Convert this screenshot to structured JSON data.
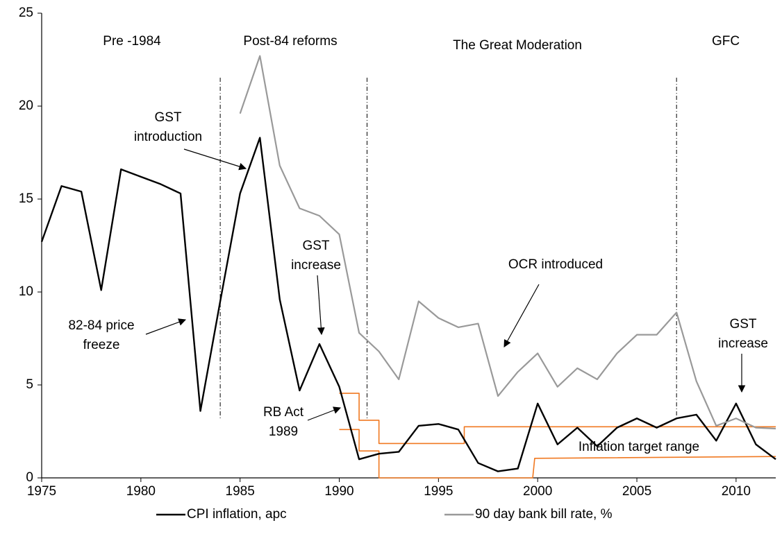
{
  "chart_data": {
    "type": "line",
    "x": [
      1975,
      1976,
      1977,
      1978,
      1979,
      1980,
      1981,
      1982,
      1983,
      1984,
      1985,
      1986,
      1987,
      1988,
      1989,
      1990,
      1991,
      1992,
      1993,
      1994,
      1995,
      1996,
      1997,
      1998,
      1999,
      2000,
      2001,
      2002,
      2003,
      2004,
      2005,
      2006,
      2007,
      2008,
      2009,
      2010,
      2011,
      2012
    ],
    "series": [
      {
        "name": "CPI inflation, apc",
        "color": "#000000",
        "values": [
          12.7,
          15.7,
          15.4,
          10.1,
          16.6,
          16.2,
          15.8,
          15.3,
          3.6,
          9.5,
          15.3,
          18.3,
          9.6,
          4.7,
          7.2,
          4.9,
          1.0,
          1.3,
          1.4,
          2.8,
          2.9,
          2.6,
          0.8,
          0.35,
          0.5,
          4.0,
          1.8,
          2.7,
          1.7,
          2.7,
          3.2,
          2.7,
          3.2,
          3.4,
          2.0,
          4.0,
          1.8,
          1.0
        ]
      },
      {
        "name": "90 day bank bill rate, %",
        "color": "#999999",
        "values": [
          null,
          null,
          null,
          null,
          null,
          null,
          null,
          null,
          null,
          null,
          19.6,
          22.7,
          16.8,
          14.5,
          14.1,
          13.1,
          7.8,
          6.8,
          5.3,
          9.5,
          8.6,
          8.1,
          8.3,
          4.4,
          5.7,
          6.7,
          4.9,
          5.9,
          5.3,
          6.7,
          7.7,
          7.7,
          8.9,
          5.2,
          2.8,
          3.2,
          2.7,
          2.65
        ]
      }
    ],
    "target_range_lines": [
      {
        "color": "#f07820",
        "x": [
          1990,
          1991,
          1991,
          1992,
          1992,
          1996.3,
          1996.3,
          2012
        ],
        "values": [
          4.55,
          4.55,
          3.1,
          3.1,
          1.85,
          1.85,
          2.75,
          2.75
        ]
      },
      {
        "color": "#f07820",
        "x": [
          1990,
          1991,
          1991,
          1992,
          1992,
          1999.75,
          1999.85,
          2012
        ],
        "values": [
          2.6,
          2.6,
          1.45,
          1.45,
          0,
          0,
          1.05,
          1.15
        ]
      }
    ],
    "period_dividers": [
      1984,
      1991.4,
      2007
    ],
    "xlim": [
      1975,
      2012
    ],
    "xticks": [
      1975,
      1980,
      1985,
      1990,
      1995,
      2000,
      2005,
      2010
    ],
    "ylim": [
      0,
      25
    ],
    "yticks": [
      0,
      5,
      10,
      15,
      20,
      25
    ],
    "annotations": [
      {
        "lines": [
          "Pre -1984"
        ]
      },
      {
        "lines": [
          "Post-84 reforms"
        ]
      },
      {
        "lines": [
          "The Great Moderation"
        ]
      },
      {
        "lines": [
          "GFC"
        ]
      },
      {
        "lines": [
          "GST",
          "introduction"
        ]
      },
      {
        "lines": [
          "82-84 price",
          "freeze"
        ]
      },
      {
        "lines": [
          "GST",
          "increase"
        ]
      },
      {
        "lines": [
          "OCR introduced"
        ]
      },
      {
        "lines": [
          "RB Act",
          "1989"
        ]
      },
      {
        "lines": [
          "Inflation target range"
        ]
      },
      {
        "lines": [
          "GST",
          "increase"
        ]
      }
    ]
  }
}
